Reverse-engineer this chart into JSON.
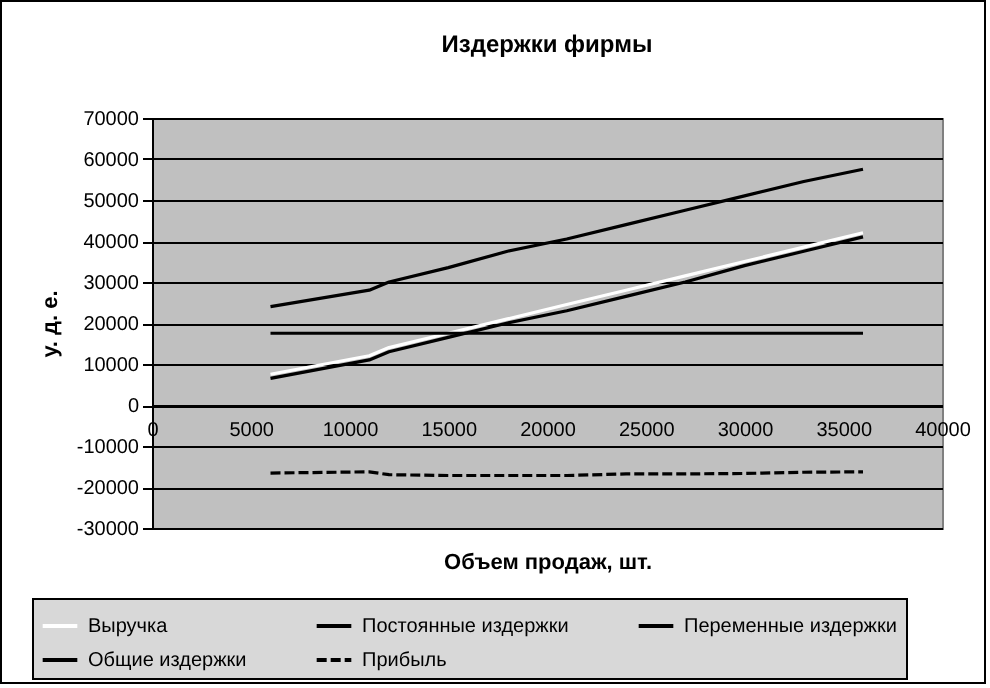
{
  "chart_data": {
    "type": "line",
    "title": "Издержки фирмы",
    "xlabel": "Объем продаж, шт.",
    "ylabel": "у. д. е.",
    "x": [
      6000,
      11000,
      12000,
      15000,
      18000,
      21000,
      24000,
      27000,
      30000,
      33000,
      36000
    ],
    "xlim": [
      0,
      40000
    ],
    "xticks": [
      0,
      5000,
      10000,
      15000,
      20000,
      25000,
      30000,
      35000,
      40000
    ],
    "ylim": [
      -30000,
      70000
    ],
    "yticks": [
      -30000,
      -20000,
      -10000,
      0,
      10000,
      20000,
      30000,
      40000,
      50000,
      60000,
      70000
    ],
    "grid": "y",
    "legend": "bottom",
    "marker": "none",
    "series": [
      {
        "name": "Выручка",
        "color": "#ffffff",
        "line_style": "solid",
        "values": [
          7500,
          12000,
          14000,
          17500,
          21000,
          24500,
          28000,
          31500,
          35000,
          38500,
          42000
        ]
      },
      {
        "name": "Постоянные издержки",
        "color": "#000000",
        "line_style": "solid",
        "values": [
          17500,
          17500,
          17500,
          17500,
          17500,
          17500,
          17500,
          17500,
          17500,
          17500,
          17500
        ]
      },
      {
        "name": "Переменные издержки",
        "color": "#000000",
        "line_style": "solid",
        "values": [
          6500,
          11000,
          13000,
          16500,
          20000,
          23000,
          26500,
          30000,
          34000,
          37500,
          41000
        ]
      },
      {
        "name": "Общие издержки",
        "color": "#000000",
        "line_style": "solid",
        "values": [
          24000,
          28000,
          30000,
          33500,
          37500,
          40500,
          44000,
          47500,
          51000,
          54500,
          57500
        ]
      },
      {
        "name": "Прибыль",
        "color": "#000000",
        "line_style": "dashed",
        "values": [
          -16600,
          -16300,
          -17000,
          -17200,
          -17200,
          -17200,
          -16800,
          -16800,
          -16700,
          -16400,
          -16300
        ]
      }
    ]
  }
}
